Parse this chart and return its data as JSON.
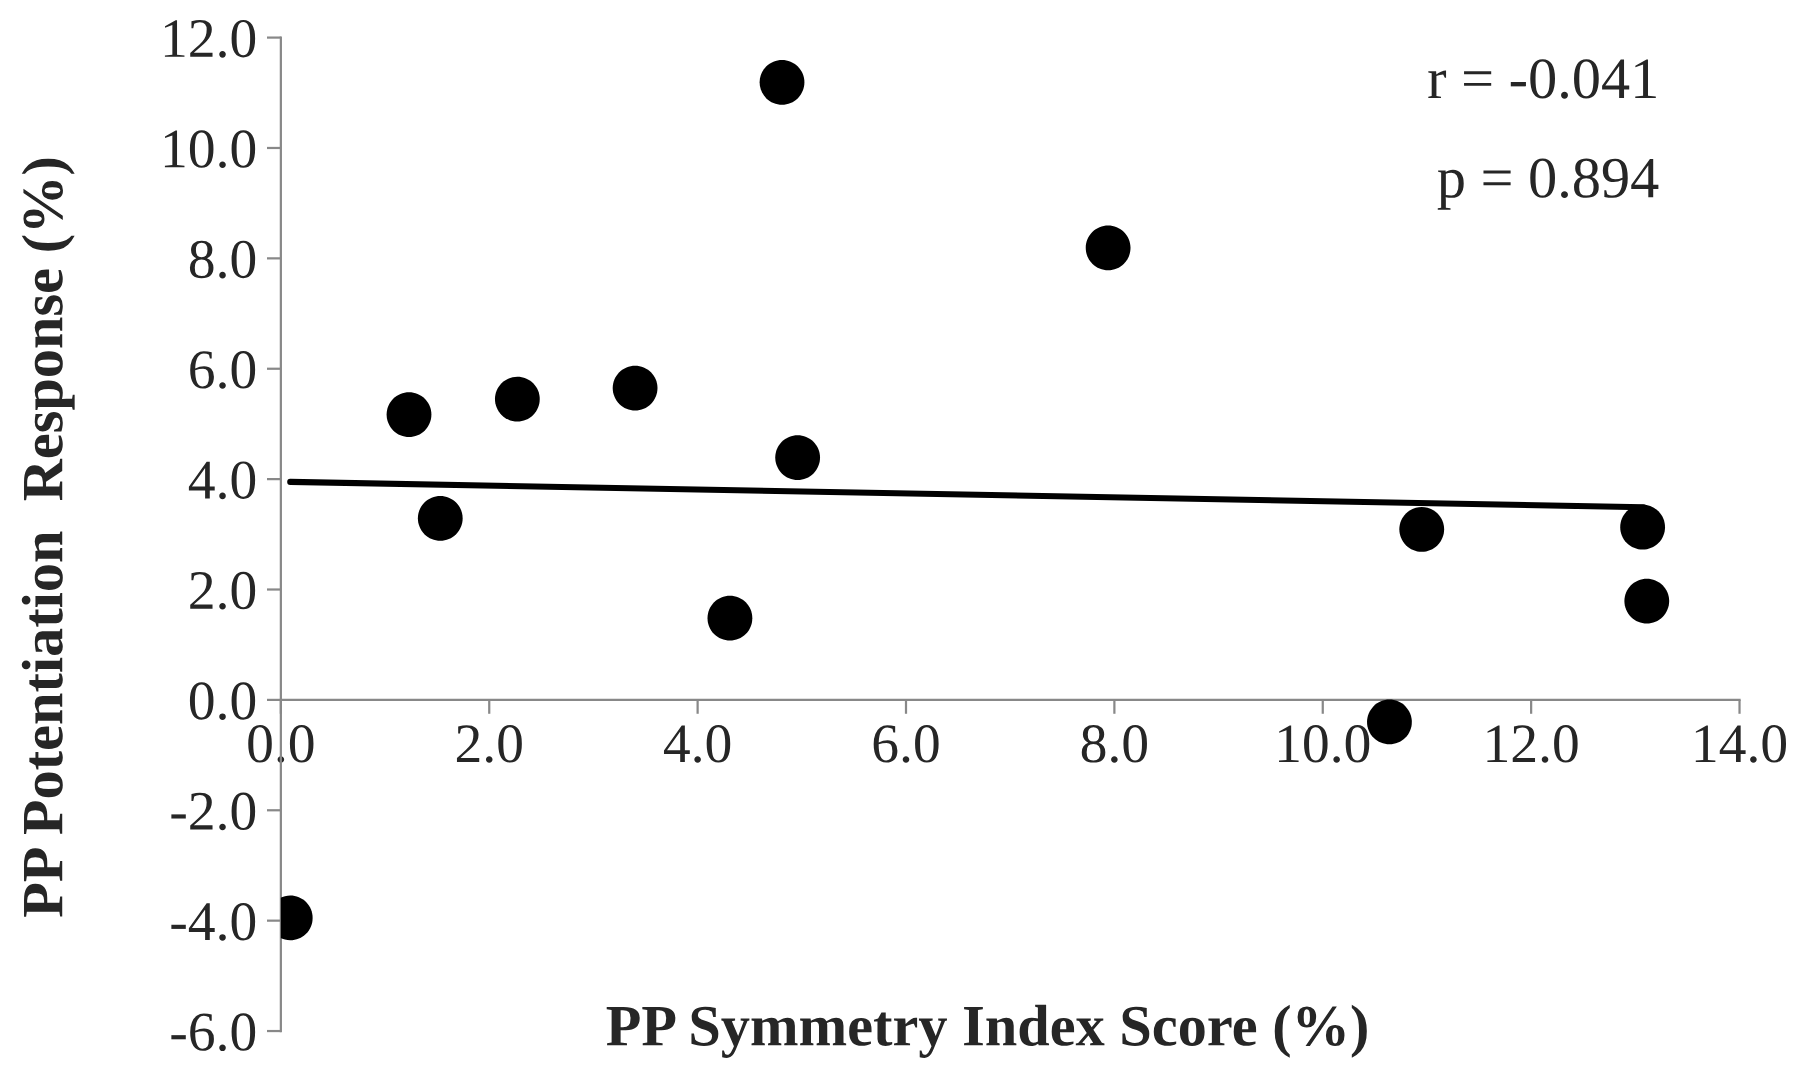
{
  "chart_data": {
    "type": "scatter",
    "xlabel": "PP Symmetry Index Score (%)",
    "ylabel": "PP Potentiation  Response (%)",
    "x": [
      0.09,
      1.23,
      1.53,
      2.27,
      3.4,
      4.31,
      4.81,
      4.96,
      7.94,
      10.64,
      10.95,
      13.07,
      13.11
    ],
    "series": [
      {
        "marker": "circle",
        "color": "#000000",
        "values": [
          -3.95,
          5.17,
          3.29,
          5.45,
          5.65,
          1.48,
          11.19,
          4.39,
          8.19,
          -0.4,
          3.09,
          3.13,
          1.79
        ]
      },
      {
        "type": "line",
        "marker": "none",
        "color": "#000000",
        "x": [
          0.09,
          13.08
        ],
        "values": [
          3.95,
          3.49
        ]
      }
    ],
    "annotations": [
      "r = -0.041",
      "p = 0.894"
    ],
    "xlim": [
      0,
      14
    ],
    "ylim": [
      -6,
      12
    ],
    "xticks": [
      {
        "value": 0,
        "label": "0.0"
      },
      {
        "value": 2,
        "label": "2.0"
      },
      {
        "value": 4,
        "label": "4.0"
      },
      {
        "value": 6,
        "label": "6.0"
      },
      {
        "value": 8,
        "label": "8.0"
      },
      {
        "value": 10,
        "label": "10.0"
      },
      {
        "value": 12,
        "label": "12.0"
      },
      {
        "value": 14,
        "label": "14.0"
      }
    ],
    "yticks": [
      {
        "value": -6,
        "label": "-6.0"
      },
      {
        "value": -4,
        "label": "-4.0"
      },
      {
        "value": -2,
        "label": "-2.0"
      },
      {
        "value": 0,
        "label": "0.0"
      },
      {
        "value": 2,
        "label": "2.0"
      },
      {
        "value": 4,
        "label": "4.0"
      },
      {
        "value": 6,
        "label": "6.0"
      },
      {
        "value": 8,
        "label": "8.0"
      },
      {
        "value": 10,
        "label": "10.0"
      },
      {
        "value": 12,
        "label": "12.0"
      }
    ],
    "grid": false,
    "legend": false
  }
}
